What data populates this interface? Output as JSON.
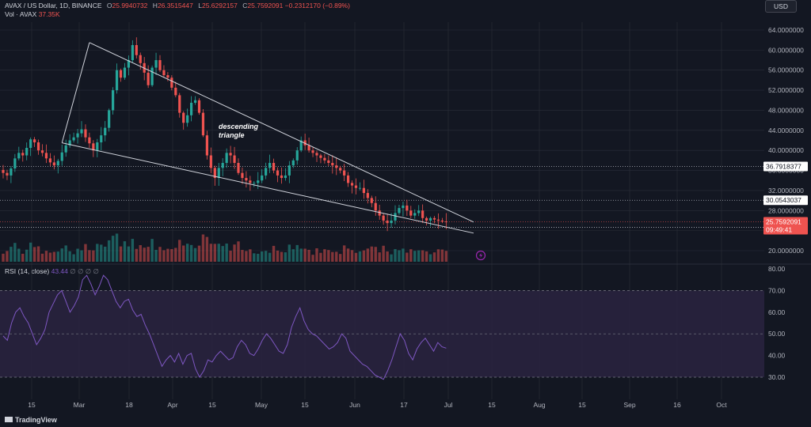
{
  "header": {
    "symbol": "AVAX / US Dollar, 1D, BINANCE",
    "o_label": "O",
    "o_value": "25.9940732",
    "h_label": "H",
    "h_value": "26.3515447",
    "l_label": "L",
    "l_value": "25.6292157",
    "c_label": "C",
    "c_value": "25.7592091",
    "change": "−0.2312170 (−0.89%)",
    "vol_label": "Vol · AVAX",
    "vol_value": "37.35K",
    "rsi_label": "RSI (14, close)",
    "rsi_value": "43.44",
    "rsi_extra": "∅ ∅ ∅ ∅"
  },
  "currency_button": "USD",
  "brand": "TradingView",
  "annotation": {
    "line1": "descending",
    "line2": "triangle"
  },
  "colors": {
    "background": "#131722",
    "up": "#26a69a",
    "down": "#ef5350",
    "rsi_line": "#7e57c2",
    "rsi_band": "#2a2340",
    "grid": "#2a2e39",
    "trendline": "#d1d4dc",
    "price_tag": "#ef5350",
    "level_tag": "#ffffff"
  },
  "chart_data": [
    {
      "type": "candlestick",
      "title": "AVAX / US Dollar, 1D, BINANCE",
      "y_ticks": [
        "64.0000000",
        "60.0000000",
        "56.0000000",
        "52.0000000",
        "48.0000000",
        "44.0000000",
        "40.0000000",
        "36.0000000",
        "32.0000000",
        "28.0000000",
        "24.0000000",
        "20.0000000"
      ],
      "ylim": [
        17.7,
        66.5
      ],
      "x_ticks": [
        "15",
        "Mar",
        "18",
        "Apr",
        "15",
        "May",
        "15",
        "Jun",
        "17",
        "Jul",
        "15",
        "Aug",
        "15",
        "Sep",
        "16",
        "Oct"
      ],
      "levels": [
        {
          "value": 36.7918377,
          "label": "36.7918377"
        },
        {
          "value": 30.0543037,
          "label": "30.0543037"
        },
        {
          "value": 24.6438597,
          "label": "24.6438597"
        }
      ],
      "last_price": {
        "value": 25.7592091,
        "label": "25.7592091",
        "countdown": "09:49:41"
      },
      "closes": [
        35.5,
        35,
        36.4,
        38.4,
        39.5,
        39,
        40.5,
        42.2,
        41.6,
        40,
        39.5,
        38.4,
        37.6,
        37,
        37.9,
        39.6,
        41,
        42,
        42.6,
        43.4,
        44.2,
        42.6,
        41.4,
        40,
        41.6,
        43,
        44.5,
        48,
        52,
        56,
        54.5,
        56.5,
        58,
        61,
        59,
        57.4,
        55.5,
        53,
        56.5,
        58,
        56,
        55,
        54.5,
        52.5,
        51,
        47.5,
        45.5,
        47,
        49.5,
        50,
        47.5,
        43,
        39,
        36.5,
        34.5,
        36.5,
        37.5,
        39.5,
        39,
        37.5,
        35.5,
        34.5,
        34,
        33.5,
        33.5,
        34,
        35,
        36.5,
        37.5,
        36,
        35,
        34.5,
        35,
        37,
        38,
        40,
        42,
        41,
        40,
        39.5,
        39,
        38.5,
        38,
        37.5,
        37,
        36.5,
        36,
        35,
        33.5,
        33,
        32.5,
        32.5,
        31.5,
        30.5,
        29.5,
        28,
        27,
        26,
        25.5,
        26,
        27.5,
        28.5,
        29,
        28,
        27,
        27.5,
        28,
        26.5,
        26,
        26.5,
        26.2,
        26,
        25.8,
        25.76
      ],
      "volume_scale_note": "volume bars shown unlabelled",
      "trendlines": [
        {
          "name": "",
          "from": {
            "x": 15,
            "y": 41.5
          },
          "to": {
            "x": 22,
            "y": 61.5
          }
        },
        {
          "name": "",
          "from": {
            "x": 22,
            "y": 61.5
          },
          "to": {
            "x": 120,
            "y": 25.7
          }
        },
        {
          "name": "",
          "from": {
            "x": 15,
            "y": 41.5
          },
          "to": {
            "x": 120,
            "y": 23.5
          }
        }
      ]
    },
    {
      "type": "line",
      "title": "RSI (14, close)",
      "y_ticks": [
        "80.00",
        "70.00",
        "60.00",
        "50.00",
        "40.00",
        "30.00"
      ],
      "ylim": [
        27.0,
        81.5
      ],
      "bands": [
        30,
        50,
        70
      ],
      "values": [
        49,
        47,
        55,
        60,
        62,
        58,
        55,
        50,
        45,
        48,
        52,
        60,
        64,
        68,
        70,
        65,
        60,
        63,
        67,
        75,
        77,
        73,
        68,
        72,
        77,
        75,
        70,
        65,
        62,
        65,
        66,
        61,
        58,
        59,
        54,
        50,
        45,
        40,
        35,
        38,
        40,
        37,
        41,
        36,
        40,
        41,
        34,
        30,
        33,
        38,
        37,
        40,
        42,
        40,
        38,
        39,
        44,
        47,
        45,
        41,
        40,
        43,
        47,
        50,
        48,
        45,
        42,
        41,
        45,
        53,
        58,
        62,
        56,
        52,
        50,
        49,
        47,
        45,
        43,
        44,
        46,
        50,
        48,
        42,
        40,
        38,
        36,
        35,
        33,
        31,
        30,
        29,
        33,
        38,
        44,
        50,
        47,
        41,
        38,
        43,
        46,
        48,
        45,
        42,
        46,
        44,
        43.4
      ],
      "value_display": "43.44"
    }
  ]
}
